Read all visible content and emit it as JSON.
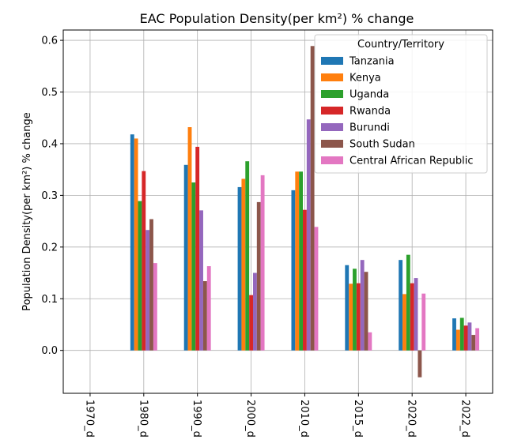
{
  "chart_data": {
    "type": "bar",
    "title": "EAC Population Density(per km²) % change",
    "xlabel": "",
    "ylabel": "Population Density(per km²) % change",
    "ylim": [
      -0.083,
      0.62
    ],
    "yticks": [
      0.0,
      0.1,
      0.2,
      0.3,
      0.4,
      0.5,
      0.6
    ],
    "ytick_labels": [
      "0.0",
      "0.1",
      "0.2",
      "0.3",
      "0.4",
      "0.5",
      "0.6"
    ],
    "grid": true,
    "legend": {
      "title": "Country/Territory",
      "placement": "top-right"
    },
    "categories": [
      "1970_d",
      "1980_d",
      "1990_d",
      "2000_d",
      "2010_d",
      "2015_d",
      "2020_d",
      "2022_d"
    ],
    "series": [
      {
        "name": "Tanzania",
        "color": "#1f77b4",
        "values": [
          null,
          0.418,
          0.359,
          0.316,
          0.31,
          0.165,
          0.175,
          0.062
        ]
      },
      {
        "name": "Kenya",
        "color": "#ff7f0e",
        "values": [
          null,
          0.41,
          0.432,
          0.332,
          0.346,
          0.129,
          0.109,
          0.04
        ]
      },
      {
        "name": "Uganda",
        "color": "#2ca02c",
        "values": [
          null,
          0.289,
          0.325,
          0.366,
          0.346,
          0.158,
          0.185,
          0.063
        ]
      },
      {
        "name": "Rwanda",
        "color": "#d62728",
        "values": [
          null,
          0.347,
          0.394,
          0.107,
          0.272,
          0.13,
          0.13,
          0.048
        ]
      },
      {
        "name": "Burundi",
        "color": "#9467bd",
        "values": [
          null,
          0.233,
          0.271,
          0.15,
          0.447,
          0.175,
          0.14,
          0.054
        ]
      },
      {
        "name": "South Sudan",
        "color": "#8c564b",
        "values": [
          null,
          0.254,
          0.134,
          0.287,
          0.589,
          0.152,
          -0.052,
          0.03
        ]
      },
      {
        "name": "Central African Republic",
        "color": "#e377c2",
        "values": [
          null,
          0.169,
          0.163,
          0.339,
          0.239,
          0.035,
          0.11,
          0.043
        ]
      }
    ]
  }
}
